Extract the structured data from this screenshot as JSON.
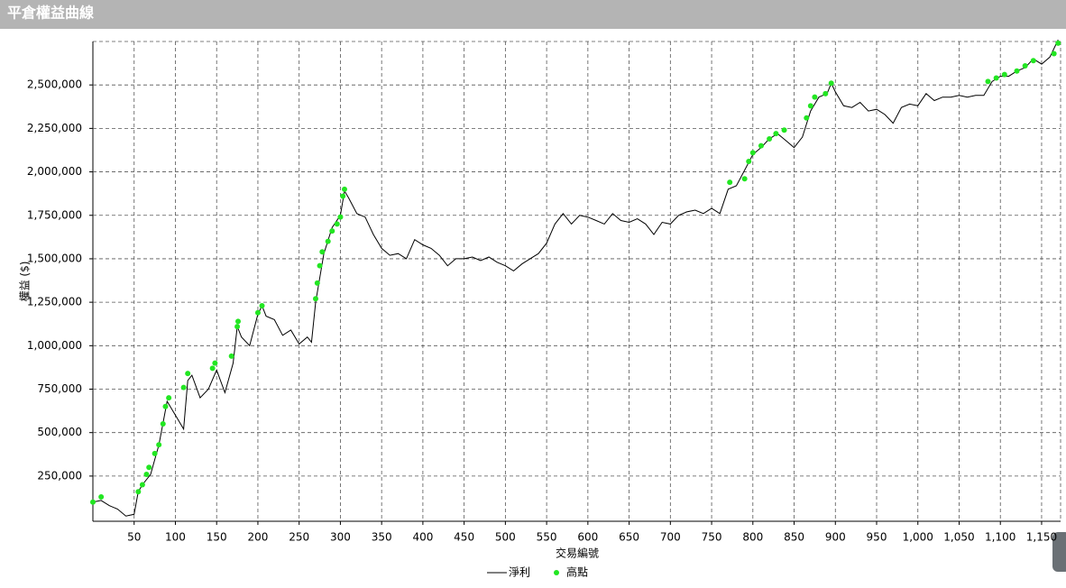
{
  "chart_data": {
    "type": "line",
    "title": "平倉權益曲線",
    "x_label": "交易編號",
    "y_label": "權益 ($)",
    "xlim": [
      0,
      1173
    ],
    "ylim": [
      -10000,
      2750000
    ],
    "xticks": [
      50,
      100,
      150,
      200,
      250,
      300,
      350,
      400,
      450,
      500,
      550,
      600,
      650,
      700,
      750,
      800,
      850,
      900,
      950,
      {
        "value": 1000,
        "label": "1,000"
      },
      {
        "value": 1050,
        "label": "1,050"
      },
      {
        "value": 1100,
        "label": "1,100"
      },
      {
        "value": 1150,
        "label": "1,150"
      }
    ],
    "yticks": [
      {
        "value": 250000,
        "label": "250,000"
      },
      {
        "value": 500000,
        "label": "500,000"
      },
      {
        "value": 750000,
        "label": "750,000"
      },
      {
        "value": 1000000,
        "label": "1,000,000"
      },
      {
        "value": 1250000,
        "label": "1,250,000"
      },
      {
        "value": 1500000,
        "label": "1,500,000"
      },
      {
        "value": 1750000,
        "label": "1,750,000"
      },
      {
        "value": 2000000,
        "label": "2,000,000"
      },
      {
        "value": 2250000,
        "label": "2,250,000"
      },
      {
        "value": 2500000,
        "label": "2,500,000"
      }
    ],
    "grid": true,
    "series": [
      {
        "name": "淨利",
        "color": "#000000",
        "style": "line",
        "x": [
          0,
          10,
          20,
          30,
          40,
          50,
          55,
          60,
          70,
          80,
          90,
          100,
          110,
          115,
          120,
          130,
          140,
          150,
          160,
          170,
          175,
          180,
          190,
          200,
          205,
          210,
          220,
          230,
          240,
          250,
          260,
          265,
          270,
          280,
          290,
          300,
          305,
          310,
          320,
          330,
          340,
          350,
          360,
          370,
          380,
          390,
          400,
          410,
          420,
          430,
          440,
          450,
          460,
          470,
          480,
          490,
          500,
          510,
          520,
          530,
          540,
          550,
          560,
          570,
          580,
          590,
          600,
          610,
          620,
          630,
          640,
          650,
          660,
          670,
          680,
          690,
          700,
          710,
          720,
          730,
          740,
          750,
          760,
          770,
          780,
          790,
          800,
          810,
          820,
          830,
          840,
          850,
          860,
          870,
          880,
          890,
          895,
          900,
          910,
          920,
          930,
          940,
          950,
          960,
          970,
          980,
          990,
          1000,
          1010,
          1020,
          1030,
          1040,
          1050,
          1060,
          1070,
          1080,
          1090,
          1100,
          1110,
          1120,
          1130,
          1140,
          1150,
          1160,
          1170
        ],
        "values": [
          100000,
          110000,
          80000,
          60000,
          20000,
          30000,
          160000,
          200000,
          260000,
          430000,
          680000,
          600000,
          520000,
          800000,
          830000,
          700000,
          750000,
          860000,
          730000,
          900000,
          1110000,
          1050000,
          1000000,
          1180000,
          1230000,
          1170000,
          1150000,
          1060000,
          1090000,
          1010000,
          1050000,
          1020000,
          1250000,
          1530000,
          1680000,
          1750000,
          1890000,
          1850000,
          1760000,
          1740000,
          1640000,
          1560000,
          1520000,
          1530000,
          1500000,
          1610000,
          1580000,
          1560000,
          1520000,
          1460000,
          1500000,
          1500000,
          1510000,
          1490000,
          1510000,
          1480000,
          1460000,
          1430000,
          1470000,
          1500000,
          1530000,
          1590000,
          1700000,
          1760000,
          1700000,
          1750000,
          1740000,
          1720000,
          1700000,
          1760000,
          1720000,
          1710000,
          1730000,
          1700000,
          1640000,
          1710000,
          1700000,
          1750000,
          1770000,
          1780000,
          1760000,
          1790000,
          1760000,
          1900000,
          1920000,
          2010000,
          2100000,
          2140000,
          2190000,
          2220000,
          2180000,
          2140000,
          2200000,
          2350000,
          2430000,
          2450000,
          2510000,
          2460000,
          2380000,
          2370000,
          2400000,
          2350000,
          2360000,
          2330000,
          2280000,
          2370000,
          2390000,
          2380000,
          2450000,
          2410000,
          2430000,
          2430000,
          2440000,
          2430000,
          2440000,
          2440000,
          2520000,
          2550000,
          2550000,
          2580000,
          2600000,
          2650000,
          2620000,
          2660000,
          2760000
        ]
      },
      {
        "name": "高點",
        "color": "#22e622",
        "style": "markers",
        "x": [
          0,
          10,
          55,
          60,
          65,
          68,
          75,
          80,
          85,
          88,
          92,
          110,
          115,
          145,
          148,
          168,
          175,
          176,
          200,
          205,
          270,
          272,
          275,
          278,
          285,
          290,
          296,
          300,
          303,
          305,
          772,
          790,
          795,
          800,
          810,
          820,
          828,
          838,
          865,
          870,
          875,
          888,
          895,
          1085,
          1095,
          1105,
          1120,
          1130,
          1140,
          1165,
          1170
        ],
        "values": [
          100000,
          130000,
          160000,
          200000,
          260000,
          300000,
          380000,
          430000,
          550000,
          650000,
          700000,
          760000,
          840000,
          870000,
          900000,
          940000,
          1110000,
          1140000,
          1190000,
          1230000,
          1270000,
          1360000,
          1460000,
          1540000,
          1600000,
          1660000,
          1700000,
          1740000,
          1860000,
          1900000,
          1940000,
          1960000,
          2060000,
          2110000,
          2150000,
          2190000,
          2220000,
          2240000,
          2310000,
          2380000,
          2430000,
          2450000,
          2510000,
          2520000,
          2540000,
          2560000,
          2580000,
          2610000,
          2640000,
          2680000,
          2740000
        ]
      }
    ]
  }
}
